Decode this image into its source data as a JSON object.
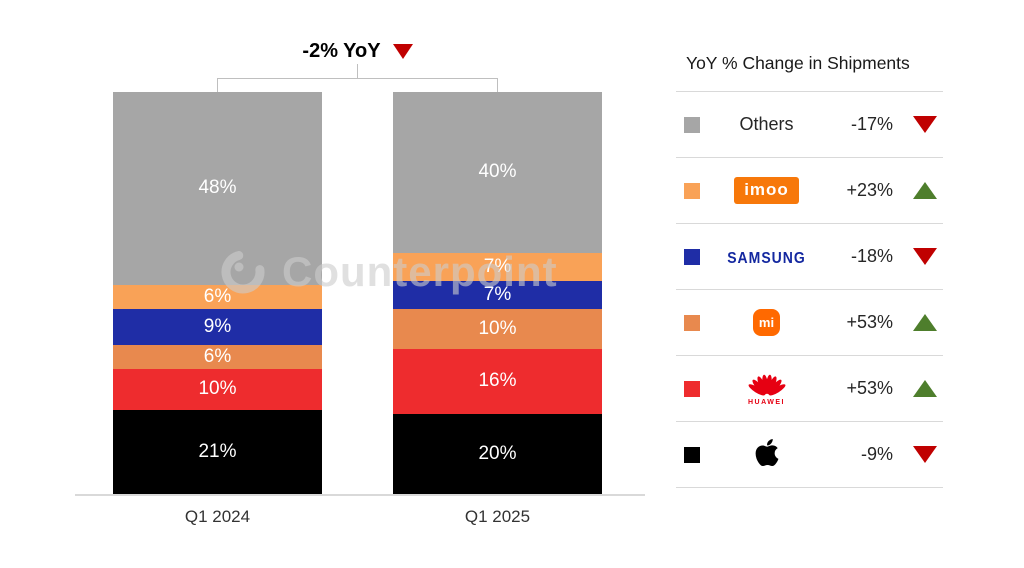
{
  "watermark": {
    "text": "Counterpoint",
    "logo": "counterpoint-c-icon"
  },
  "legend": {
    "header": "YoY % Change in Shipments"
  },
  "colors": {
    "negative_arrow": "#C00000",
    "positive_arrow": "#4E7E2C",
    "axis_line": "#D9D9D9",
    "bracket": "#BFBFBF",
    "imoo_logo_bg": "#F7780A",
    "mi_logo_bg": "#FF6900",
    "samsung_logo_text": "#1428A0",
    "huawei_logo_red": "#E60012"
  },
  "chart_data": {
    "type": "bar",
    "stacked": true,
    "title": "-2% YoY",
    "title_arrow": "down",
    "categories": [
      "Q1 2024",
      "Q1 2025"
    ],
    "value_suffix": "%",
    "ylim": [
      0,
      100
    ],
    "grid": false,
    "legend_position": "right",
    "stack_order_note": "series listed top-to-bottom as rendered in each bar",
    "series": [
      {
        "name": "Others",
        "logo_type": "text",
        "logo_text": "Others",
        "color": "#A6A6A6",
        "values": [
          48,
          40
        ],
        "yoy_change": "-17%",
        "direction": "down"
      },
      {
        "name": "imoo",
        "logo_type": "imoo",
        "logo_text": "imoo",
        "color": "#F9A257",
        "values": [
          6,
          7
        ],
        "yoy_change": "+23%",
        "direction": "up"
      },
      {
        "name": "Samsung",
        "logo_type": "samsung",
        "logo_text": "SAMSUNG",
        "color": "#1F2DA6",
        "values": [
          9,
          7
        ],
        "yoy_change": "-18%",
        "direction": "down"
      },
      {
        "name": "Xiaomi",
        "logo_type": "mi",
        "logo_text": "mi",
        "color": "#E8894E",
        "values": [
          6,
          10
        ],
        "yoy_change": "+53%",
        "direction": "up"
      },
      {
        "name": "Huawei",
        "logo_type": "huawei",
        "logo_text": "HUAWEI",
        "color": "#EE2C2E",
        "values": [
          10,
          16
        ],
        "yoy_change": "+53%",
        "direction": "up"
      },
      {
        "name": "Apple",
        "logo_type": "apple",
        "logo_text": "",
        "color": "#000000",
        "values": [
          21,
          20
        ],
        "yoy_change": "-9%",
        "direction": "down"
      }
    ]
  }
}
